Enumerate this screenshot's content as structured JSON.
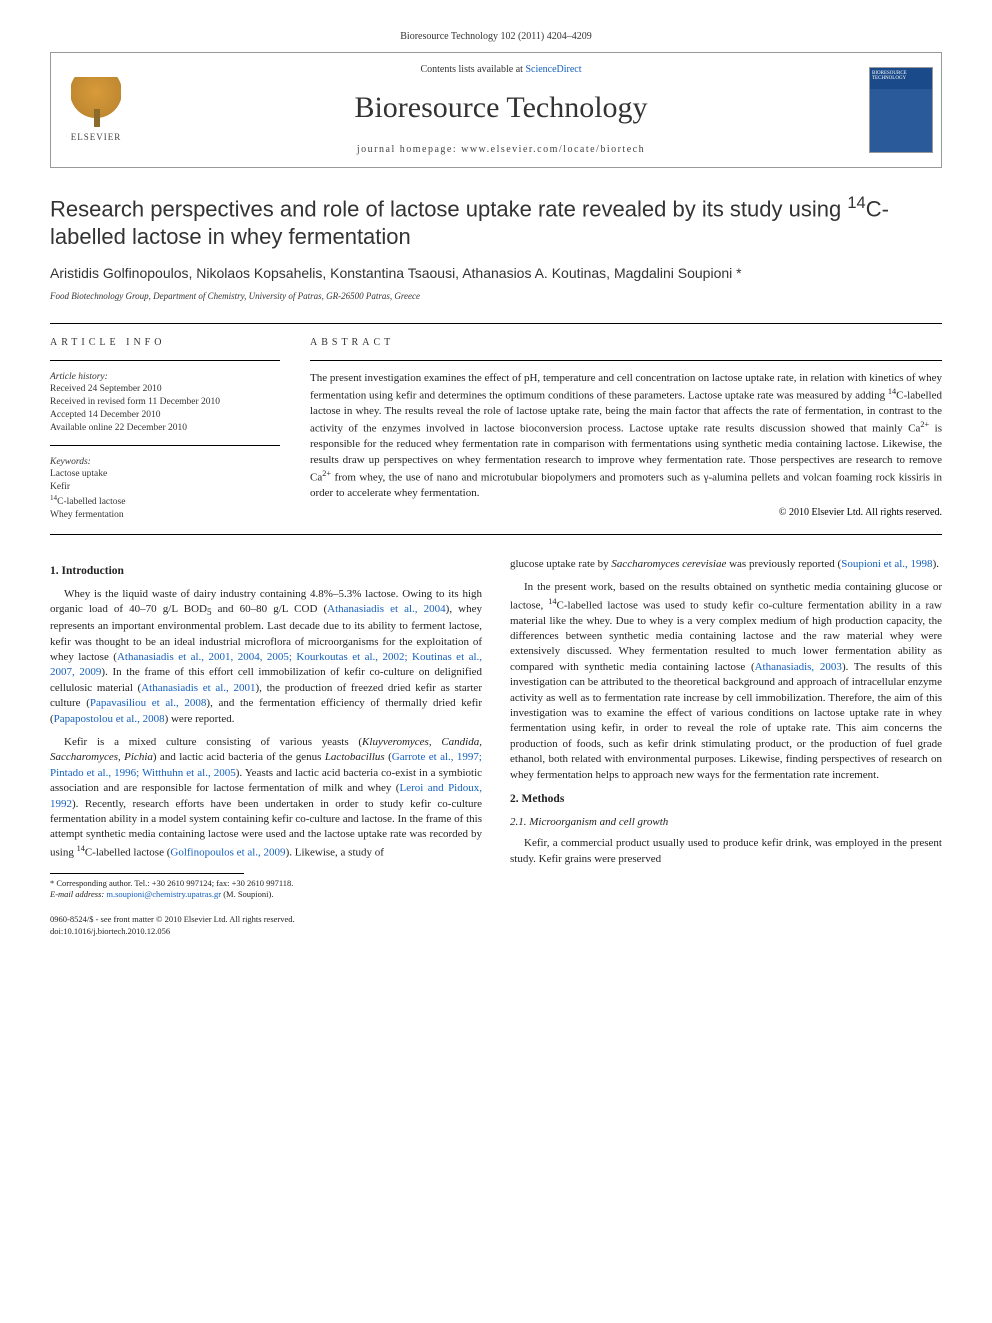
{
  "citation": "Bioresource Technology 102 (2011) 4204–4209",
  "header": {
    "contents_prefix": "Contents lists available at ",
    "contents_link": "ScienceDirect",
    "journal": "Bioresource Technology",
    "homepage_prefix": "journal homepage: ",
    "homepage_url": "www.elsevier.com/locate/biortech",
    "publisher": "ELSEVIER"
  },
  "title_html": "Research perspectives and role of lactose uptake rate revealed by its study using <sup>14</sup>C-labelled lactose in whey fermentation",
  "authors": "Aristidis Golfinopoulos, Nikolaos Kopsahelis, Konstantina Tsaousi, Athanasios A. Koutinas, Magdalini Soupioni *",
  "affiliation": "Food Biotechnology Group, Department of Chemistry, University of Patras, GR-26500 Patras, Greece",
  "info": {
    "label": "ARTICLE INFO",
    "history_label": "Article history:",
    "received": "Received 24 September 2010",
    "revised": "Received in revised form 11 December 2010",
    "accepted": "Accepted 14 December 2010",
    "online": "Available online 22 December 2010",
    "keywords_label": "Keywords:",
    "keywords": [
      "Lactose uptake",
      "Kefir",
      "14C-labelled lactose",
      "Whey fermentation"
    ]
  },
  "abstract": {
    "label": "ABSTRACT",
    "text_html": "The present investigation examines the effect of pH, temperature and cell concentration on lactose uptake rate, in relation with kinetics of whey fermentation using kefir and determines the optimum conditions of these parameters. Lactose uptake rate was measured by adding <sup>14</sup>C-labelled lactose in whey. The results reveal the role of lactose uptake rate, being the main factor that affects the rate of fermentation, in contrast to the activity of the enzymes involved in lactose bioconversion process. Lactose uptake rate results discussion showed that mainly Ca<sup>2+</sup> is responsible for the reduced whey fermentation rate in comparison with fermentations using synthetic media containing lactose. Likewise, the results draw up perspectives on whey fermentation research to improve whey fermentation rate. Those perspectives are research to remove Ca<sup>2+</sup> from whey, the use of nano and microtubular biopolymers and promoters such as γ-alumina pellets and volcan foaming rock kissiris in order to accelerate whey fermentation.",
    "copyright": "© 2010 Elsevier Ltd. All rights reserved."
  },
  "sections": {
    "intro_heading": "1. Introduction",
    "methods_heading": "2. Methods",
    "methods_sub1": "2.1. Microorganism and cell growth",
    "intro_p1_html": "Whey is the liquid waste of dairy industry containing 4.8%–5.3% lactose. Owing to its high organic load of 40–70 g/L BOD<sub>5</sub> and 60–80 g/L COD (<span class=\"cite-link\">Athanasiadis et al., 2004</span>), whey represents an important environmental problem. Last decade due to its ability to ferment lactose, kefir was thought to be an ideal industrial microflora of microorganisms for the exploitation of whey lactose (<span class=\"cite-link\">Athanasiadis et al., 2001, 2004, 2005; Kourkoutas et al., 2002; Koutinas et al., 2007, 2009</span>). In the frame of this effort cell immobilization of kefir co-culture on delignified cellulosic material (<span class=\"cite-link\">Athanasiadis et al., 2001</span>), the production of freezed dried kefir as starter culture (<span class=\"cite-link\">Papavasiliou et al., 2008</span>), and the fermentation efficiency of thermally dried kefir (<span class=\"cite-link\">Papapostolou et al., 2008</span>) were reported.",
    "intro_p2_html": "Kefir is a mixed culture consisting of various yeasts (<i>Kluyveromyces, Candida, Saccharomyces, Pichia</i>) and lactic acid bacteria of the genus <i>Lactobacillus</i> (<span class=\"cite-link\">Garrote et al., 1997; Pintado et al., 1996; Witthuhn et al., 2005</span>). Yeasts and lactic acid bacteria co-exist in a symbiotic association and are responsible for lactose fermentation of milk and whey (<span class=\"cite-link\">Leroi and Pidoux, 1992</span>). Recently, research efforts have been undertaken in order to study kefir co-culture fermentation ability in a model system containing kefir co-culture and lactose. In the frame of this attempt synthetic media containing lactose were used and the lactose uptake rate was recorded by using <sup>14</sup>C-labelled lactose (<span class=\"cite-link\">Golfinopoulos et al., 2009</span>). Likewise, a study of",
    "col2_p0_html": "glucose uptake rate by <i>Saccharomyces cerevisiae</i> was previously reported (<span class=\"cite-link\">Soupioni et al., 1998</span>).",
    "col2_p1_html": "In the present work, based on the results obtained on synthetic media containing glucose or lactose, <sup>14</sup>C-labelled lactose was used to study kefir co-culture fermentation ability in a raw material like the whey. Due to whey is a very complex medium of high production capacity, the differences between synthetic media containing lactose and the raw material whey were extensively discussed. Whey fermentation resulted to much lower fermentation ability as compared with synthetic media containing lactose (<span class=\"cite-link\">Athanasiadis, 2003</span>). The results of this investigation can be attributed to the theoretical background and approach of intracellular enzyme activity as well as to fermentation rate increase by cell immobilization. Therefore, the aim of this investigation was to examine the effect of various conditions on lactose uptake rate in whey fermentation using kefir, in order to reveal the role of uptake rate. This aim concerns the production of foods, such as kefir drink stimulating product, or the production of fuel grade ethanol, both related with environmental purposes. Likewise, finding perspectives of research on whey fermentation helps to approach new ways for the fermentation rate increment.",
    "methods_p1": "Kefir, a commercial product usually used to produce kefir drink, was employed in the present study. Kefir grains were preserved"
  },
  "footnote": {
    "corr": "* Corresponding author. Tel.: +30 2610 997124; fax: +30 2610 997118.",
    "email_label": "E-mail address:",
    "email": "m.soupioni@chemistry.upatras.gr",
    "email_who": "(M. Soupioni)."
  },
  "doi": {
    "line1": "0960-8524/$ - see front matter © 2010 Elsevier Ltd. All rights reserved.",
    "line2": "doi:10.1016/j.biortech.2010.12.056"
  },
  "colors": {
    "link": "#1560bd",
    "text": "#222222",
    "rule": "#000000"
  }
}
